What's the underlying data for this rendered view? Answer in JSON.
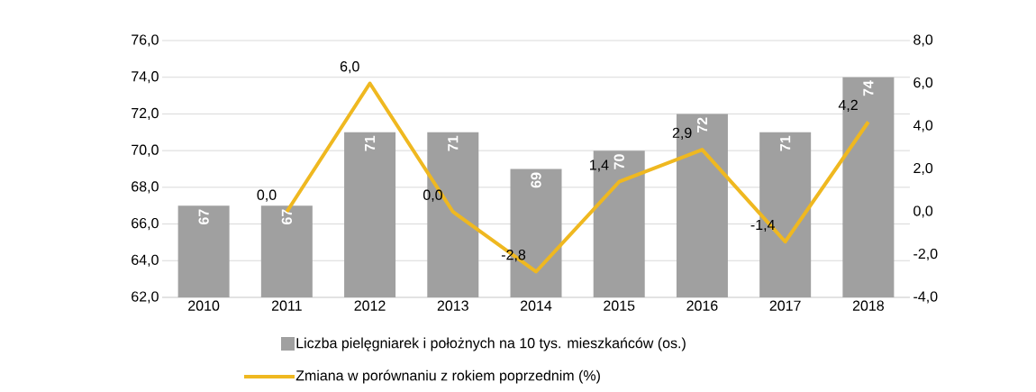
{
  "chart_data": {
    "type": "bar",
    "categories": [
      "2010",
      "2011",
      "2012",
      "2013",
      "2014",
      "2015",
      "2016",
      "2017",
      "2018"
    ],
    "series": [
      {
        "name": "Liczba pielęgniarek i położnych na 10 tys. mieszkańców (os.)",
        "color": "#a0a0a0",
        "values": [
          67,
          67,
          71,
          71,
          69,
          70,
          72,
          71,
          74
        ],
        "value_labels": [
          "67",
          "67",
          "71",
          "71",
          "69",
          "70",
          "72",
          "71",
          "74"
        ]
      },
      {
        "name": "Zmiana w porównaniu z rokiem poprzednim (%)",
        "type": "line",
        "axis": "y2",
        "color": "#efb820",
        "values": [
          null,
          0.0,
          6.0,
          0.0,
          -2.8,
          1.4,
          2.9,
          -1.4,
          4.2
        ],
        "value_labels": [
          null,
          "0,0",
          "6,0",
          "0,0",
          "-2,8",
          "1,4",
          "2,9",
          "-1,4",
          "4,2"
        ]
      }
    ],
    "ylim": [
      62,
      76
    ],
    "yticks": [
      {
        "value": 62,
        "label": "62,0"
      },
      {
        "value": 64,
        "label": "64,0"
      },
      {
        "value": 66,
        "label": "66,0"
      },
      {
        "value": 68,
        "label": "68,0"
      },
      {
        "value": 70,
        "label": "70,0"
      },
      {
        "value": 72,
        "label": "72,0"
      },
      {
        "value": 74,
        "label": "74,0"
      },
      {
        "value": 76,
        "label": "76,0"
      }
    ],
    "y2lim": [
      -4,
      8
    ],
    "y2ticks": [
      {
        "value": -4,
        "label": "-4,0"
      },
      {
        "value": -2,
        "label": "-2,0"
      },
      {
        "value": 0,
        "label": "0,0"
      },
      {
        "value": 2,
        "label": "2,0"
      },
      {
        "value": 4,
        "label": "4,0"
      },
      {
        "value": 6,
        "label": "6,0"
      },
      {
        "value": 8,
        "label": "8,0"
      }
    ],
    "grid": "y",
    "legend": "bottom",
    "marker": "none",
    "line_style": "solid"
  }
}
